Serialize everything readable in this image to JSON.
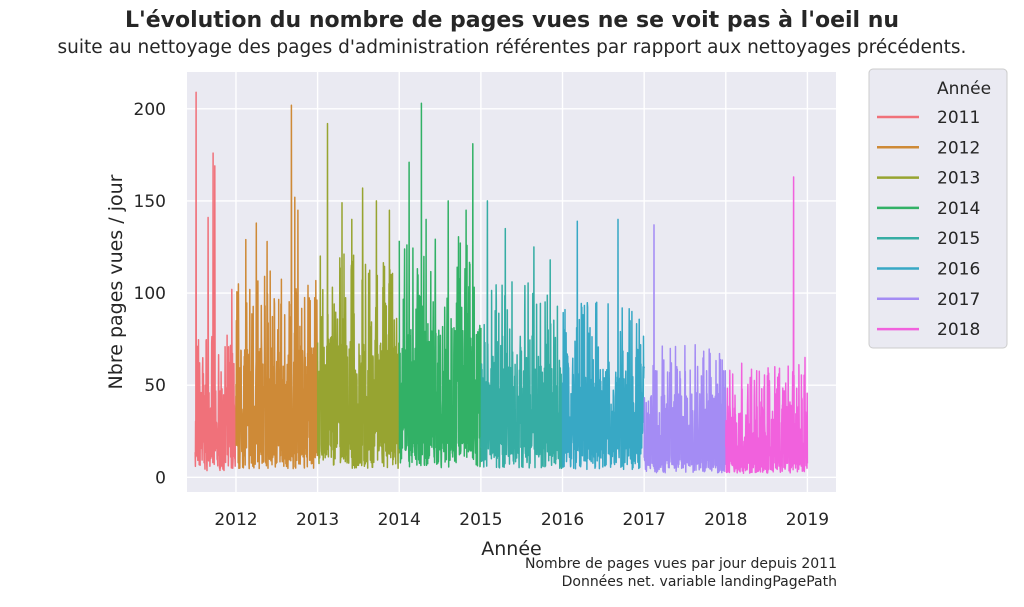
{
  "title": "L'évolution du nombre de pages vues ne se voit pas à l'oeil nu",
  "subtitle": "suite au nettoyage des pages d'administration référentes par rapport aux nettoyages précédents.",
  "footnotes": [
    "Nombre de pages vues par jour depuis 2011",
    "Données net. variable landingPagePath"
  ],
  "colors": {
    "background": "#eaeaf2",
    "grid": "#ffffff",
    "s2011": "#f0717a",
    "s2012": "#ce8a37",
    "s2013": "#97a431",
    "s2014": "#32b166",
    "s2015": "#36ada4",
    "s2016": "#38a8c5",
    "s2017": "#a48cf4",
    "s2018": "#f161dd"
  },
  "chart_data": {
    "type": "line",
    "title": "L'évolution du nombre de pages vues ne se voit pas à l'oeil nu",
    "subtitle": "suite au nettoyage des pages d'administration référentes par rapport aux nettoyages précédents.",
    "xlabel": "Année",
    "ylabel": "Nbre pages vues / jour",
    "xlim": [
      2011.4,
      2019.35
    ],
    "ylim": [
      -8,
      220
    ],
    "yticks": [
      0,
      50,
      100,
      150,
      200
    ],
    "xticks": [
      2012,
      2013,
      2014,
      2015,
      2016,
      2017,
      2018,
      2019
    ],
    "grid": true,
    "legend": {
      "title": "Année",
      "placement": "outside right"
    },
    "series": [
      {
        "name": "2011",
        "color": "#f0717a",
        "start": 2011.5,
        "end": 2012.0,
        "base": 18,
        "spread": 40,
        "peaks": [
          [
            2011.51,
            209
          ],
          [
            2011.66,
            141
          ],
          [
            2011.72,
            176
          ],
          [
            2011.74,
            169
          ],
          [
            2011.95,
            102
          ]
        ]
      },
      {
        "name": "2012",
        "color": "#ce8a37",
        "start": 2012.0,
        "end": 2013.0,
        "base": 22,
        "spread": 60,
        "peaks": [
          [
            2012.12,
            129
          ],
          [
            2012.25,
            138
          ],
          [
            2012.38,
            128
          ],
          [
            2012.68,
            202
          ],
          [
            2012.72,
            152
          ],
          [
            2012.76,
            145
          ]
        ]
      },
      {
        "name": "2013",
        "color": "#97a431",
        "start": 2013.0,
        "end": 2014.0,
        "base": 24,
        "spread": 65,
        "peaks": [
          [
            2013.12,
            192
          ],
          [
            2013.3,
            149
          ],
          [
            2013.42,
            140
          ],
          [
            2013.55,
            157
          ],
          [
            2013.72,
            150
          ],
          [
            2013.88,
            145
          ]
        ]
      },
      {
        "name": "2014",
        "color": "#32b166",
        "start": 2014.0,
        "end": 2015.0,
        "base": 26,
        "spread": 70,
        "peaks": [
          [
            2014.12,
            171
          ],
          [
            2014.27,
            203
          ],
          [
            2014.33,
            140
          ],
          [
            2014.6,
            150
          ],
          [
            2014.82,
            145
          ],
          [
            2014.9,
            181
          ]
        ]
      },
      {
        "name": "2015",
        "color": "#36ada4",
        "start": 2015.0,
        "end": 2016.0,
        "base": 24,
        "spread": 55,
        "peaks": [
          [
            2015.08,
            150
          ],
          [
            2015.3,
            135
          ],
          [
            2015.65,
            125
          ],
          [
            2015.85,
            118
          ]
        ]
      },
      {
        "name": "2016",
        "color": "#38a8c5",
        "start": 2016.0,
        "end": 2017.0,
        "base": 20,
        "spread": 50,
        "peaks": [
          [
            2016.18,
            139
          ],
          [
            2016.42,
            95
          ],
          [
            2016.68,
            140
          ],
          [
            2016.85,
            90
          ]
        ]
      },
      {
        "name": "2017",
        "color": "#a48cf4",
        "start": 2017.0,
        "end": 2018.0,
        "base": 12,
        "spread": 40,
        "peaks": [
          [
            2017.12,
            137
          ],
          [
            2017.4,
            60
          ],
          [
            2017.7,
            55
          ]
        ]
      },
      {
        "name": "2018",
        "color": "#f161dd",
        "start": 2018.0,
        "end": 2019.0,
        "base": 10,
        "spread": 35,
        "peaks": [
          [
            2018.05,
            58
          ],
          [
            2018.6,
            60
          ],
          [
            2018.83,
            163
          ],
          [
            2018.97,
            65
          ]
        ]
      }
    ]
  }
}
